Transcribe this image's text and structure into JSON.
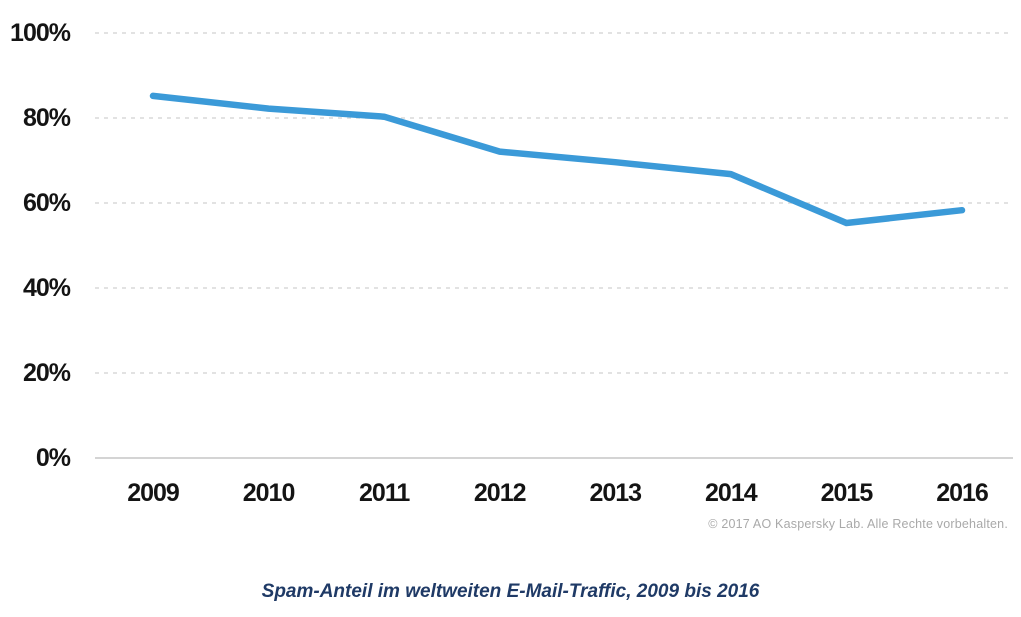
{
  "chart_data": {
    "type": "line",
    "caption": "Spam-Anteil im weltweiten E-Mail-Traffic, 2009 bis 2016",
    "copyright": "© 2017 AO Kaspersky Lab. Alle Rechte vorbehalten.",
    "categories": [
      "2009",
      "2010",
      "2011",
      "2012",
      "2013",
      "2014",
      "2015",
      "2016"
    ],
    "series": [
      {
        "name": "Spam-Anteil",
        "values": [
          85.2,
          82.2,
          80.3,
          72.1,
          69.6,
          66.8,
          55.3,
          58.3
        ]
      }
    ],
    "unit": "%",
    "ylim": [
      0,
      100
    ],
    "y_ticks": [
      {
        "value": 0,
        "label": "0%"
      },
      {
        "value": 20,
        "label": "20%"
      },
      {
        "value": 40,
        "label": "40%"
      },
      {
        "value": 60,
        "label": "60%"
      },
      {
        "value": 80,
        "label": "80%"
      },
      {
        "value": 100,
        "label": "100%"
      }
    ],
    "grid": "horizontal-dashed",
    "legend": "none",
    "colors": {
      "line": "#3b9ad8",
      "grid": "#d9d9d9",
      "axis_line": "#d4d4d4",
      "tick_label": "#141414",
      "caption": "#1f3a66",
      "copyright": "#a9a9a9",
      "background": "#ffffff"
    }
  }
}
